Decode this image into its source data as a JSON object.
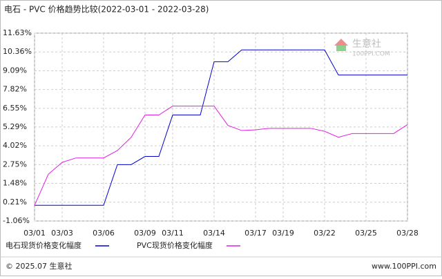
{
  "chart_data": {
    "type": "line",
    "title": "电石 - PVC 价格趋势比较(2022-03-01 - 2022-03-28)",
    "categories": [
      "03/01",
      null,
      "03/03",
      null,
      null,
      "03/06",
      null,
      null,
      "03/09",
      null,
      "03/11",
      null,
      null,
      "03/14",
      null,
      null,
      "03/17",
      null,
      "03/19",
      null,
      null,
      "03/22",
      null,
      null,
      "03/25",
      null,
      null,
      "03/28"
    ],
    "series": [
      {
        "name": "电石现货价格变化幅度",
        "color": "#0000cc",
        "values": [
          0,
          0,
          0,
          0,
          0,
          0,
          2.75,
          2.75,
          3.3,
          3.3,
          6.1,
          6.1,
          6.1,
          9.7,
          9.7,
          10.5,
          10.5,
          10.5,
          10.5,
          10.5,
          10.5,
          10.5,
          8.8,
          8.8,
          8.8,
          8.8,
          8.8,
          8.8
        ]
      },
      {
        "name": "PVC现货价格变化幅度",
        "color": "#e020e0",
        "values": [
          0,
          2.1,
          2.9,
          3.2,
          3.2,
          3.2,
          3.7,
          4.6,
          6.1,
          6.1,
          6.7,
          6.7,
          6.7,
          6.7,
          5.4,
          5.05,
          5.1,
          5.2,
          5.2,
          5.2,
          5.2,
          5.0,
          4.6,
          4.85,
          4.85,
          4.85,
          4.85,
          5.45
        ]
      }
    ],
    "ylim": [
      -1.06,
      11.63
    ],
    "yticks": [
      {
        "value": -1.06,
        "label": "-1.06%"
      },
      {
        "value": 0.21,
        "label": "0.21%"
      },
      {
        "value": 1.48,
        "label": "1.48%"
      },
      {
        "value": 2.75,
        "label": "2.75%"
      },
      {
        "value": 4.02,
        "label": "4.02%"
      },
      {
        "value": 5.29,
        "label": "5.29%"
      },
      {
        "value": 6.55,
        "label": "6.55%"
      },
      {
        "value": 7.82,
        "label": "7.82%"
      },
      {
        "value": 9.09,
        "label": "9.09%"
      },
      {
        "value": 10.36,
        "label": "10.36%"
      },
      {
        "value": 11.63,
        "label": "11.63%"
      }
    ],
    "grid": true,
    "watermark": {
      "name": "生意社",
      "site": "100PPI.COM"
    },
    "footer": {
      "left": "© 2025.07 生意社",
      "right": "www.100PPI.com"
    }
  }
}
